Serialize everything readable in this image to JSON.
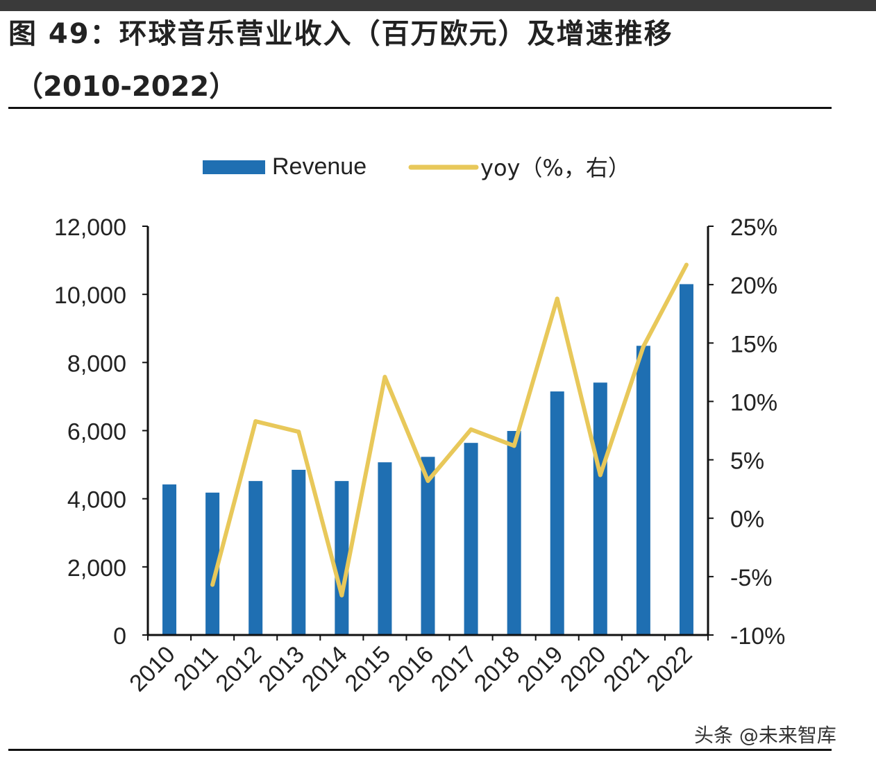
{
  "title_line1": "图 49：环球音乐营业收入（百万欧元）及增速推移",
  "title_line2": "（2010-2022）",
  "watermark": "头条 @未来智库",
  "chart_data": {
    "type": "bar+line",
    "categories": [
      "2010",
      "2011",
      "2012",
      "2013",
      "2014",
      "2015",
      "2016",
      "2017",
      "2018",
      "2019",
      "2020",
      "2021",
      "2022"
    ],
    "series": [
      {
        "name": "Revenue",
        "type": "bar",
        "axis": "left",
        "color": "#1f6fb2",
        "values": [
          4420,
          4180,
          4520,
          4850,
          4520,
          5070,
          5230,
          5640,
          5990,
          7150,
          7410,
          8490,
          10300
        ]
      },
      {
        "name": "yoy（%，右）",
        "type": "line",
        "axis": "right",
        "color": "#e8c85a",
        "values": [
          null,
          -5.7,
          8.3,
          7.4,
          -6.6,
          12.1,
          3.2,
          7.6,
          6.2,
          18.8,
          3.7,
          14.7,
          21.7
        ]
      }
    ],
    "left_axis": {
      "ylim": [
        0,
        12000
      ],
      "ticks": [
        "0",
        "2,000",
        "4,000",
        "6,000",
        "8,000",
        "10,000",
        "12,000"
      ]
    },
    "right_axis": {
      "ylim": [
        -10,
        25
      ],
      "ticks": [
        "-10%",
        "-5%",
        "0%",
        "5%",
        "10%",
        "15%",
        "20%",
        "25%"
      ]
    },
    "legend": "top-center",
    "grid": false
  }
}
